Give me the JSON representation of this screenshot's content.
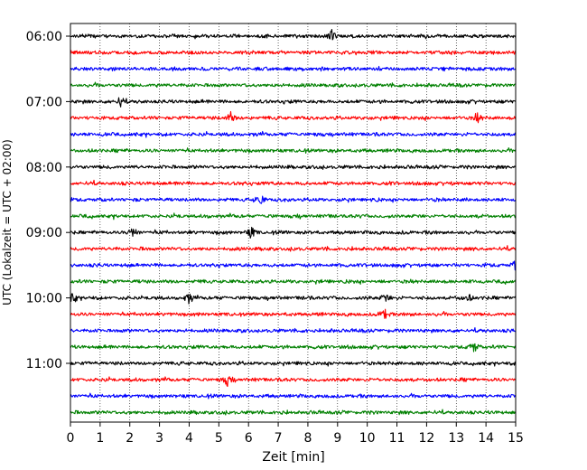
{
  "chart_data": {
    "type": "line",
    "title": "",
    "xlabel": "Zeit  [min]",
    "ylabel": "UTC (Lokalzeit = UTC + 02:00)",
    "xlim": [
      0,
      15
    ],
    "x_ticks": [
      "0",
      "1",
      "2",
      "3",
      "4",
      "5",
      "6",
      "7",
      "8",
      "9",
      "10",
      "11",
      "12",
      "13",
      "14",
      "15"
    ],
    "y_tick_labels": [
      "06:00",
      "07:00",
      "08:00",
      "09:00",
      "10:00",
      "11:00"
    ],
    "grid": "vertical-dotted",
    "trace_interval_min": 15,
    "colors": [
      "#000000",
      "#ff0000",
      "#0000ff",
      "#008000"
    ],
    "traces": [
      {
        "start": "06:00",
        "color": "#000000",
        "events_min": [
          8.8
        ]
      },
      {
        "start": "06:15",
        "color": "#ff0000",
        "events_min": []
      },
      {
        "start": "06:30",
        "color": "#0000ff",
        "events_min": []
      },
      {
        "start": "06:45",
        "color": "#008000",
        "events_min": []
      },
      {
        "start": "07:00",
        "color": "#000000",
        "events_min": [
          1.7
        ]
      },
      {
        "start": "07:15",
        "color": "#ff0000",
        "events_min": [
          5.4,
          13.7
        ]
      },
      {
        "start": "07:30",
        "color": "#0000ff",
        "events_min": []
      },
      {
        "start": "07:45",
        "color": "#008000",
        "events_min": []
      },
      {
        "start": "08:00",
        "color": "#000000",
        "events_min": []
      },
      {
        "start": "08:15",
        "color": "#ff0000",
        "events_min": []
      },
      {
        "start": "08:30",
        "color": "#0000ff",
        "events_min": [
          6.4
        ]
      },
      {
        "start": "08:45",
        "color": "#008000",
        "events_min": []
      },
      {
        "start": "09:00",
        "color": "#000000",
        "events_min": [
          2.1,
          6.1
        ]
      },
      {
        "start": "09:15",
        "color": "#ff0000",
        "events_min": []
      },
      {
        "start": "09:30",
        "color": "#0000ff",
        "events_min": [
          15.0
        ]
      },
      {
        "start": "09:45",
        "color": "#008000",
        "events_min": []
      },
      {
        "start": "10:00",
        "color": "#000000",
        "events_min": [
          0.1,
          4.0,
          10.6,
          13.4
        ]
      },
      {
        "start": "10:15",
        "color": "#ff0000",
        "events_min": [
          10.6
        ]
      },
      {
        "start": "10:30",
        "color": "#0000ff",
        "events_min": []
      },
      {
        "start": "10:45",
        "color": "#008000",
        "events_min": [
          13.6
        ]
      },
      {
        "start": "11:00",
        "color": "#000000",
        "events_min": []
      },
      {
        "start": "11:15",
        "color": "#ff0000",
        "events_min": [
          5.3
        ]
      },
      {
        "start": "11:30",
        "color": "#0000ff",
        "events_min": []
      },
      {
        "start": "11:45",
        "color": "#008000",
        "events_min": []
      }
    ]
  }
}
